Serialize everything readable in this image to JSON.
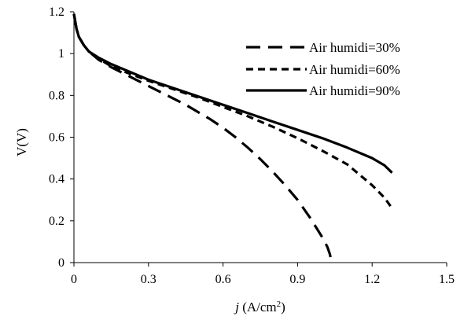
{
  "chart_data": {
    "type": "line",
    "xlabel_italic": "j",
    "xlabel_rest": " (A/cm",
    "xlabel_sup": "2",
    "xlabel_close": ")",
    "ylabel": "V(V)",
    "xlim": [
      0,
      1.5
    ],
    "ylim": [
      0,
      1.2
    ],
    "x_ticks": [
      "0",
      "0.3",
      "0.6",
      "0.9",
      "1.2",
      "1.5"
    ],
    "y_ticks": [
      "0",
      "0.2",
      "0.4",
      "0.6",
      "0.8",
      "1",
      "1.2"
    ],
    "grid": false,
    "legend_position": "top-right",
    "series": [
      {
        "name": "Air humidi=30%",
        "dash": "long",
        "x": [
          0,
          0.01,
          0.02,
          0.04,
          0.06,
          0.08,
          0.1,
          0.15,
          0.2,
          0.25,
          0.3,
          0.35,
          0.4,
          0.45,
          0.5,
          0.55,
          0.6,
          0.65,
          0.7,
          0.75,
          0.8,
          0.85,
          0.9,
          0.95,
          1.0,
          1.02,
          1.03,
          1.035
        ],
        "y": [
          1.19,
          1.12,
          1.08,
          1.04,
          1.01,
          0.99,
          0.97,
          0.935,
          0.905,
          0.875,
          0.845,
          0.815,
          0.785,
          0.755,
          0.72,
          0.685,
          0.645,
          0.6,
          0.55,
          0.495,
          0.435,
          0.37,
          0.3,
          0.215,
          0.12,
          0.075,
          0.04,
          0.01
        ]
      },
      {
        "name": "Air humidi=60%",
        "dash": "short",
        "x": [
          0,
          0.01,
          0.02,
          0.04,
          0.06,
          0.08,
          0.1,
          0.15,
          0.2,
          0.3,
          0.4,
          0.5,
          0.6,
          0.7,
          0.8,
          0.9,
          1.0,
          1.1,
          1.2,
          1.25,
          1.28
        ],
        "y": [
          1.19,
          1.12,
          1.08,
          1.04,
          1.01,
          0.99,
          0.975,
          0.94,
          0.915,
          0.87,
          0.83,
          0.79,
          0.745,
          0.7,
          0.65,
          0.595,
          0.535,
          0.47,
          0.37,
          0.31,
          0.26
        ]
      },
      {
        "name": "Air humidi=90%",
        "dash": "solid",
        "x": [
          0,
          0.01,
          0.02,
          0.04,
          0.06,
          0.08,
          0.1,
          0.15,
          0.2,
          0.3,
          0.4,
          0.5,
          0.6,
          0.7,
          0.8,
          0.9,
          1.0,
          1.1,
          1.2,
          1.25,
          1.28
        ],
        "y": [
          1.19,
          1.12,
          1.08,
          1.04,
          1.01,
          0.995,
          0.98,
          0.95,
          0.925,
          0.875,
          0.835,
          0.795,
          0.755,
          0.715,
          0.675,
          0.635,
          0.595,
          0.55,
          0.5,
          0.465,
          0.43
        ]
      }
    ]
  }
}
